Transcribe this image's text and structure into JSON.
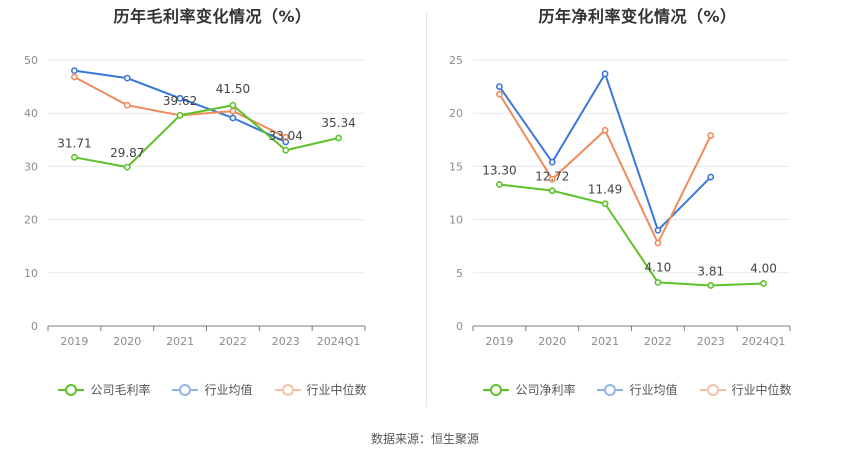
{
  "colors": {
    "company": "#5cc22a",
    "avg": "#3b78d8",
    "median": "#f08b5a",
    "grid": "#e8eaf0",
    "axis": "#7c7c7c",
    "label": "#444444"
  },
  "chart_data": [
    {
      "type": "line",
      "title": "历年毛利率变化情况（%）",
      "categories": [
        "2019",
        "2020",
        "2021",
        "2022",
        "2023",
        "2024Q1"
      ],
      "ylim": [
        0,
        50
      ],
      "yticks": [
        0,
        10,
        20,
        30,
        40,
        50
      ],
      "series": [
        {
          "name": "公司毛利率",
          "key": "company",
          "values": [
            31.71,
            29.87,
            39.62,
            41.5,
            33.04,
            35.34
          ],
          "labels": [
            "31.71",
            "29.87",
            "39.62",
            "41.50",
            "33.04",
            "35.34"
          ]
        },
        {
          "name": "行业均值",
          "key": "avg",
          "values": [
            48.0,
            46.6,
            42.8,
            39.1,
            34.6,
            null
          ]
        },
        {
          "name": "行业中位数",
          "key": "median",
          "values": [
            46.8,
            41.5,
            39.6,
            40.4,
            35.5,
            null
          ]
        }
      ]
    },
    {
      "type": "line",
      "title": "历年净利率变化情况（%）",
      "categories": [
        "2019",
        "2020",
        "2021",
        "2022",
        "2023",
        "2024Q1"
      ],
      "ylim": [
        0,
        25
      ],
      "yticks": [
        0,
        5,
        10,
        15,
        20,
        25
      ],
      "series": [
        {
          "name": "公司净利率",
          "key": "company",
          "values": [
            13.3,
            12.72,
            11.49,
            4.1,
            3.81,
            4.0
          ],
          "labels": [
            "13.30",
            "12.72",
            "11.49",
            "4.10",
            "3.81",
            "4.00"
          ]
        },
        {
          "name": "行业均值",
          "key": "avg",
          "values": [
            22.5,
            15.4,
            23.7,
            9.0,
            14.0,
            null
          ]
        },
        {
          "name": "行业中位数",
          "key": "median",
          "values": [
            21.8,
            13.8,
            18.4,
            7.8,
            17.9,
            null
          ]
        }
      ]
    }
  ],
  "source": "数据来源：恒生聚源"
}
